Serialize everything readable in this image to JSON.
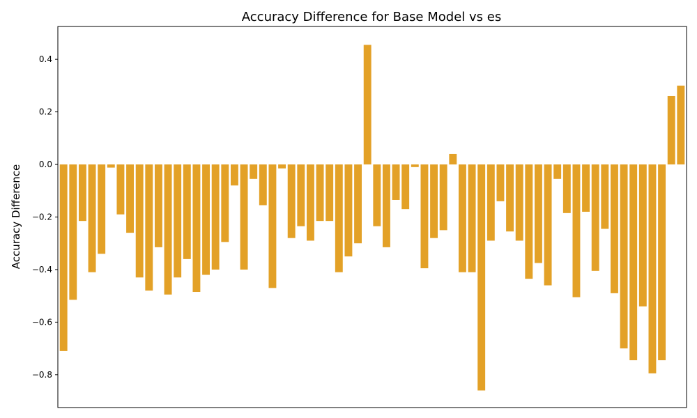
{
  "chart_data": {
    "type": "bar",
    "title": "Accuracy Difference for Base Model vs es",
    "xlabel": "",
    "ylabel": "Accuracy Difference",
    "ylim": [
      -0.925,
      0.525
    ],
    "yticks": [
      "-0.8",
      "-0.6",
      "-0.4",
      "-0.2",
      "0.0",
      "0.2",
      "0.4"
    ],
    "ytick_values": [
      -0.8,
      -0.6,
      -0.4,
      -0.2,
      0.0,
      0.2,
      0.4
    ],
    "grid": false,
    "bar_color": "#e3a127",
    "values": [
      -0.71,
      -0.515,
      -0.215,
      -0.41,
      -0.34,
      -0.012,
      -0.19,
      -0.26,
      -0.43,
      -0.48,
      -0.315,
      -0.495,
      -0.43,
      -0.36,
      -0.485,
      -0.42,
      -0.4,
      -0.295,
      -0.08,
      -0.4,
      -0.055,
      -0.155,
      -0.47,
      -0.015,
      -0.28,
      -0.235,
      -0.29,
      -0.215,
      -0.215,
      -0.41,
      -0.35,
      -0.3,
      0.455,
      -0.235,
      -0.315,
      -0.135,
      -0.17,
      -0.01,
      -0.395,
      -0.28,
      -0.25,
      0.04,
      -0.41,
      -0.41,
      -0.86,
      -0.29,
      -0.14,
      -0.255,
      -0.29,
      -0.435,
      -0.375,
      -0.46,
      -0.055,
      -0.185,
      -0.505,
      -0.18,
      -0.405,
      -0.245,
      -0.49,
      -0.7,
      -0.745,
      -0.54,
      -0.795,
      -0.745,
      0.26,
      0.3
    ]
  }
}
